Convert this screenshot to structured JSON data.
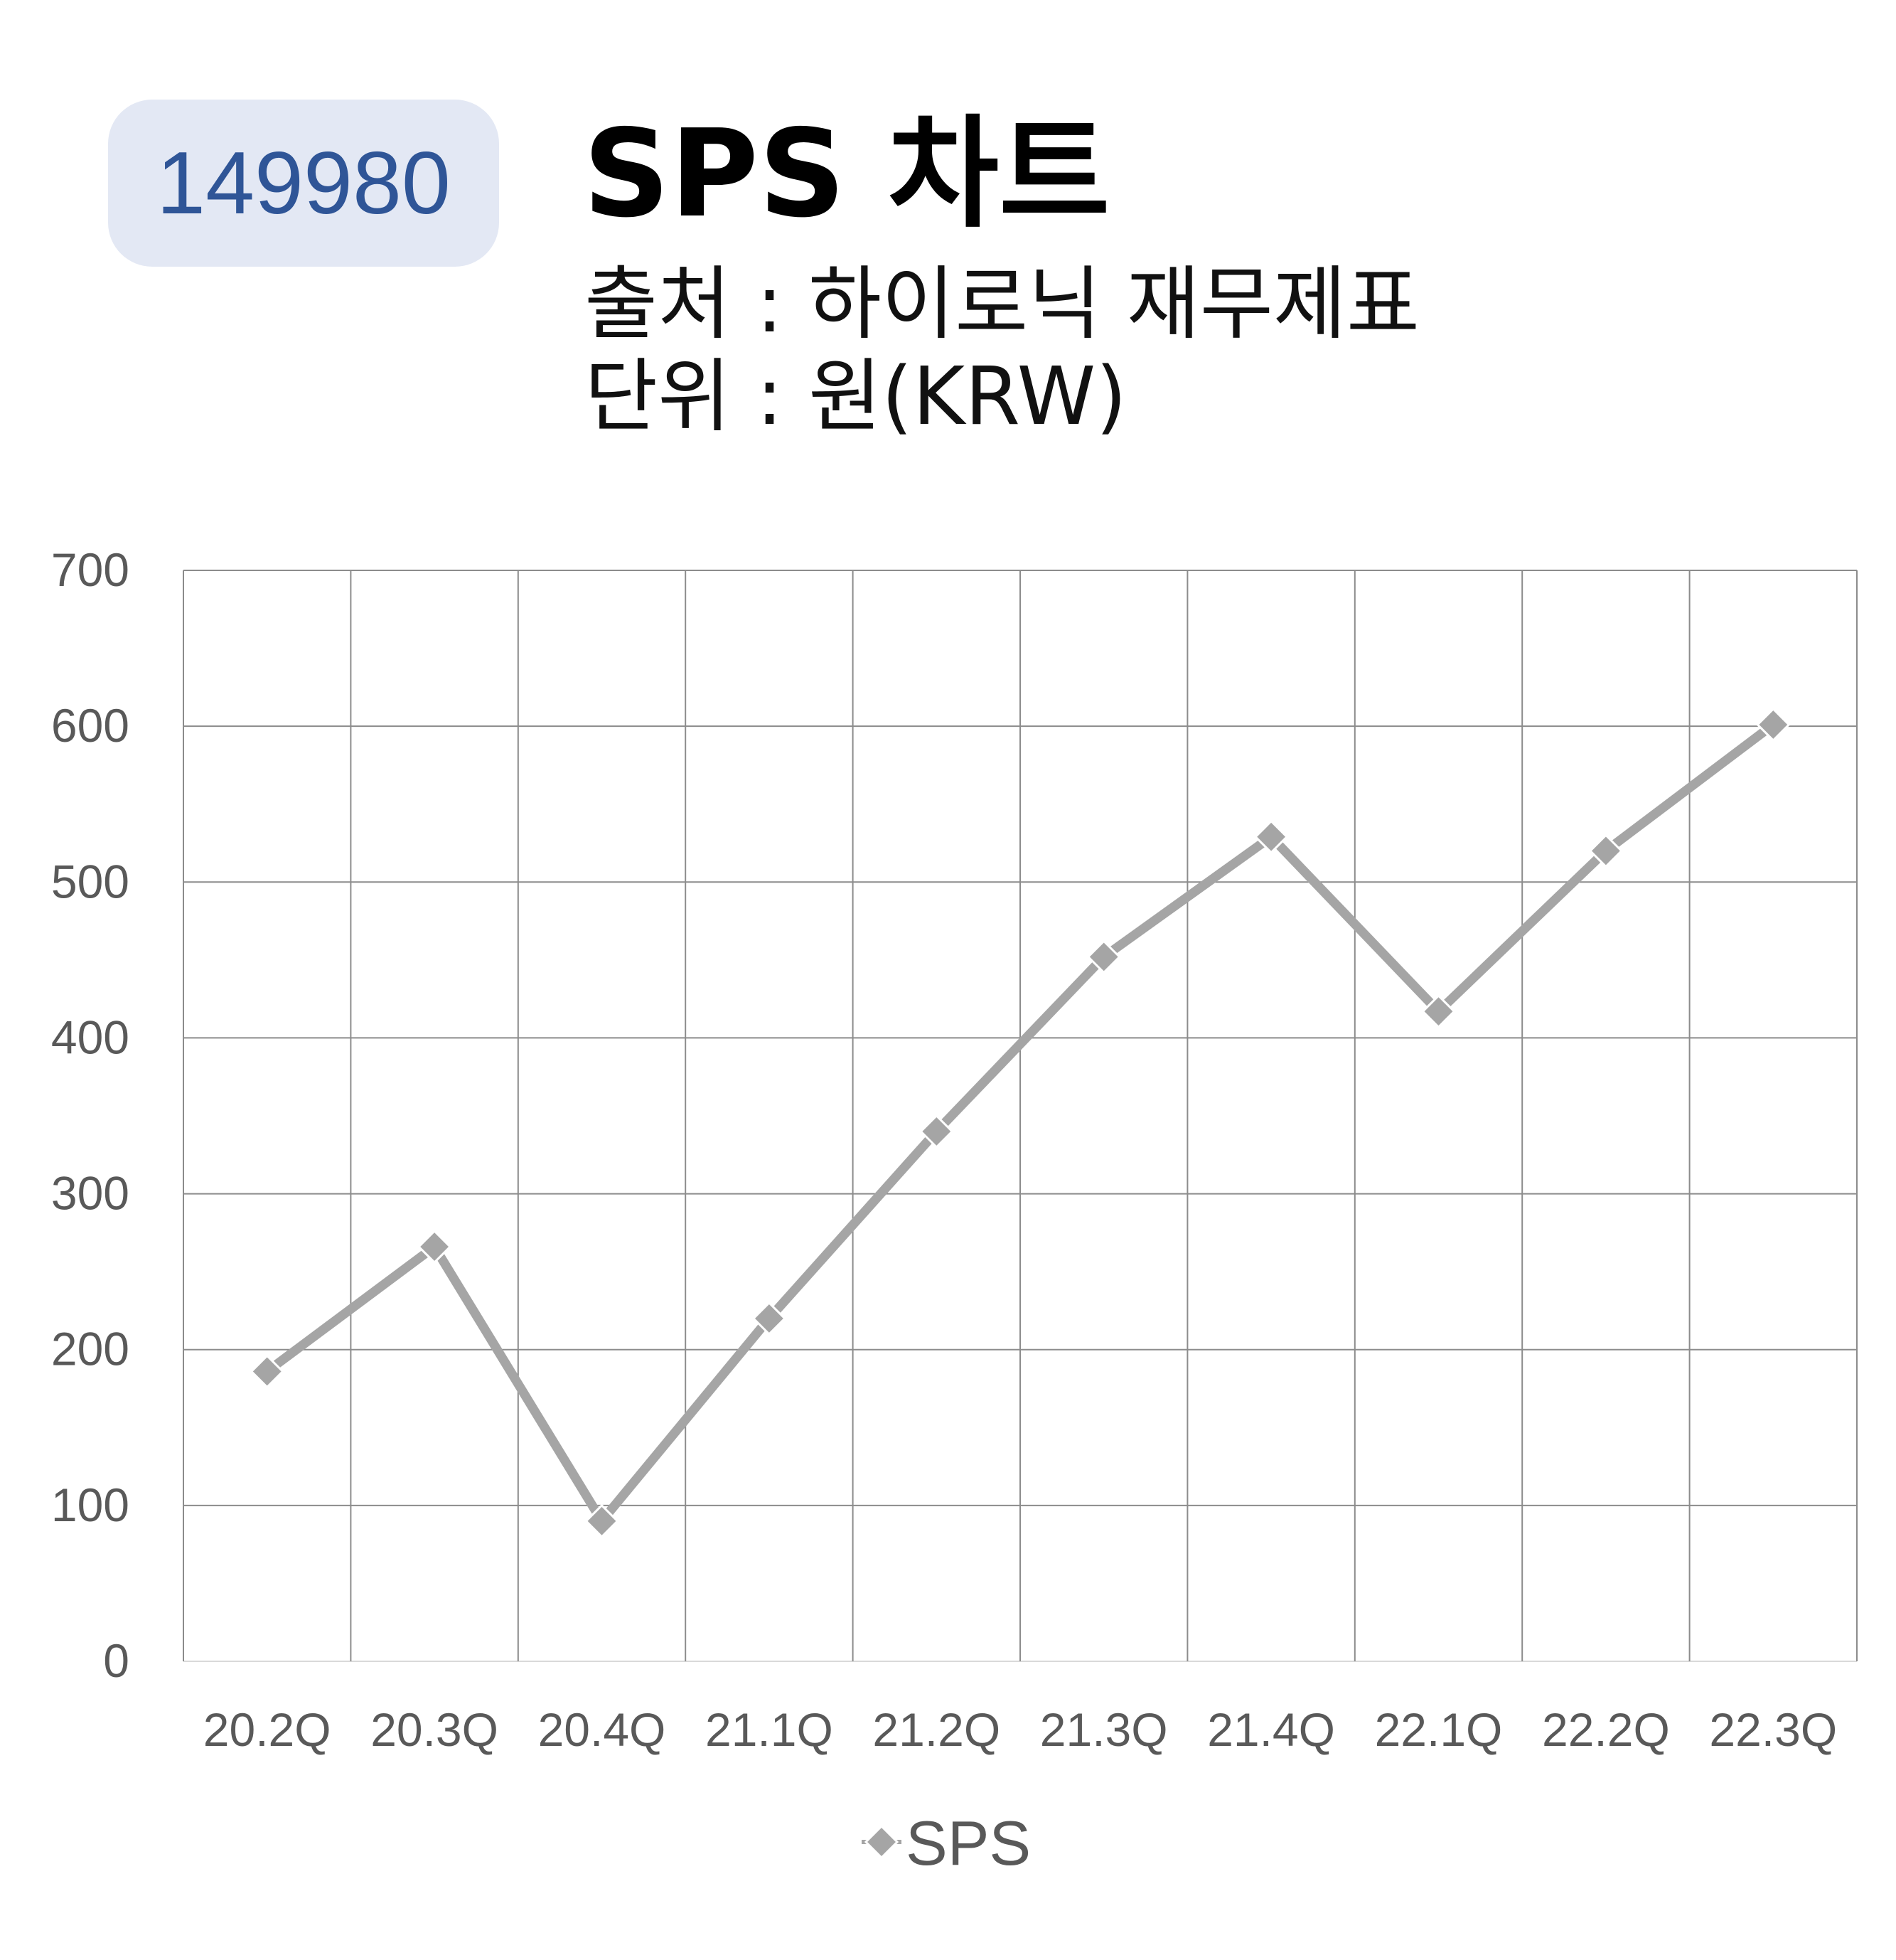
{
  "header": {
    "code": "149980",
    "title": "SPS 차트",
    "source_line": "출처 : 하이로닉 재무제표",
    "unit_line": "단위 : 원(KRW)"
  },
  "chart_data": {
    "type": "line",
    "categories": [
      "20.2Q",
      "20.3Q",
      "20.4Q",
      "21.1Q",
      "21.2Q",
      "21.3Q",
      "21.4Q",
      "22.1Q",
      "22.2Q",
      "22.3Q"
    ],
    "series": [
      {
        "name": "SPS",
        "values": [
          186,
          266,
          90,
          220,
          340,
          452,
          529,
          417,
          520,
          601
        ],
        "color": "#a5a5a5",
        "marker": "diamond"
      }
    ],
    "yticks": [
      0,
      100,
      200,
      300,
      400,
      500,
      600,
      700
    ],
    "ylim": [
      0,
      700
    ],
    "grid": true,
    "legend_position": "bottom",
    "gridline_color": "#8c8c8c"
  }
}
